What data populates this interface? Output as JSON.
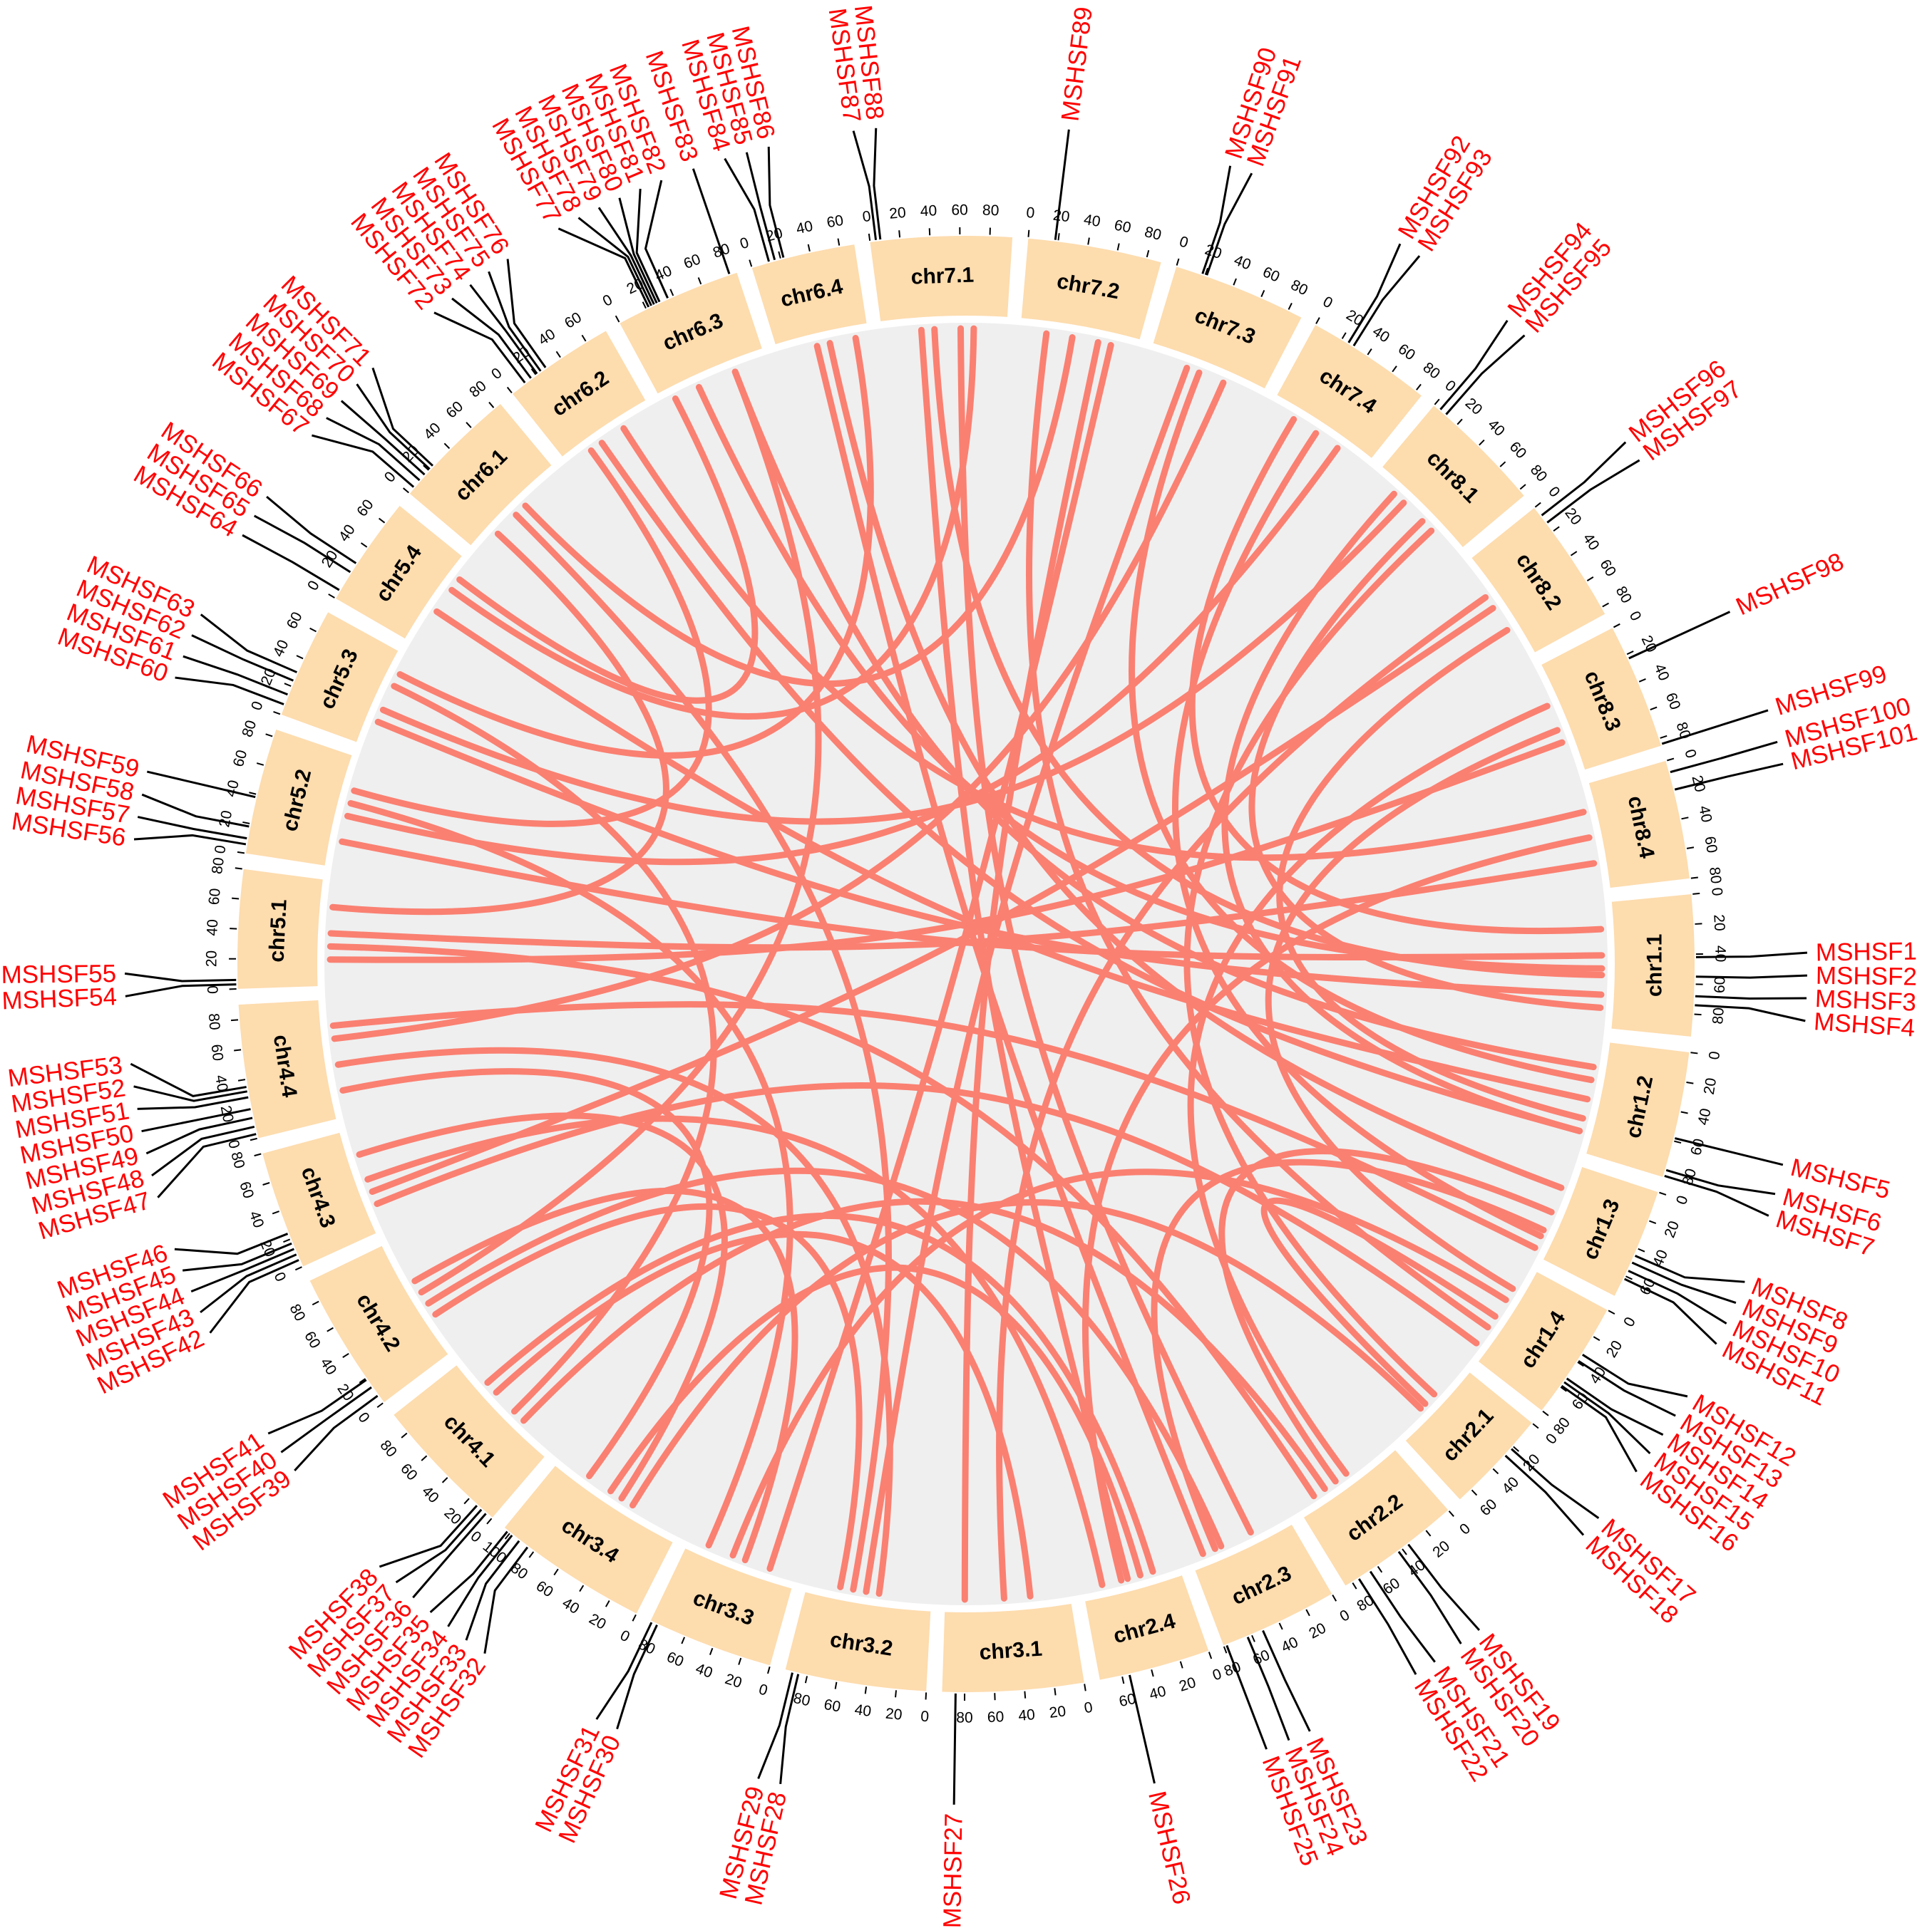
{
  "colors": {
    "chromosome_fill": "#fddcae",
    "link": "#fa8072",
    "gene_label": "#ff0000",
    "background_disc": "#efefef"
  },
  "chromosomes": [
    {
      "name": "chr1.1",
      "length": 95
    },
    {
      "name": "chr1.2",
      "length": 85
    },
    {
      "name": "chr1.3",
      "length": 75
    },
    {
      "name": "chr1.4",
      "length": 80
    },
    {
      "name": "chr2.1",
      "length": 70
    },
    {
      "name": "chr2.2",
      "length": 85
    },
    {
      "name": "chr2.3",
      "length": 80
    },
    {
      "name": "chr2.4",
      "length": 75
    },
    {
      "name": "chr3.1",
      "length": 95
    },
    {
      "name": "chr3.2",
      "length": 95
    },
    {
      "name": "chr3.3",
      "length": 85
    },
    {
      "name": "chr3.4",
      "length": 105
    },
    {
      "name": "chr4.1",
      "length": 95
    },
    {
      "name": "chr4.2",
      "length": 95
    },
    {
      "name": "chr4.3",
      "length": 80
    },
    {
      "name": "chr4.4",
      "length": 90
    },
    {
      "name": "chr5.1",
      "length": 80
    },
    {
      "name": "chr5.2",
      "length": 85
    },
    {
      "name": "chr5.3",
      "length": 75
    },
    {
      "name": "chr5.4",
      "length": 75
    },
    {
      "name": "chr6.1",
      "length": 85
    },
    {
      "name": "chr6.2",
      "length": 75
    },
    {
      "name": "chr6.3",
      "length": 85
    },
    {
      "name": "chr6.4",
      "length": 70
    },
    {
      "name": "chr7.1",
      "length": 95
    },
    {
      "name": "chr7.2",
      "length": 90
    },
    {
      "name": "chr7.3",
      "length": 90
    },
    {
      "name": "chr7.4",
      "length": 85
    },
    {
      "name": "chr8.1",
      "length": 85
    },
    {
      "name": "chr8.2",
      "length": 85
    },
    {
      "name": "chr8.3",
      "length": 85
    },
    {
      "name": "chr8.4",
      "length": 80
    }
  ],
  "genes": [
    {
      "name": "MSHSF1",
      "chr": "chr1.1",
      "pos": 42
    },
    {
      "name": "MSHSF2",
      "chr": "chr1.1",
      "pos": 55
    },
    {
      "name": "MSHSF3",
      "chr": "chr1.1",
      "pos": 68
    },
    {
      "name": "MSHSF4",
      "chr": "chr1.1",
      "pos": 74
    },
    {
      "name": "MSHSF5",
      "chr": "chr1.2",
      "pos": 58
    },
    {
      "name": "MSHSF6",
      "chr": "chr1.2",
      "pos": 80
    },
    {
      "name": "MSHSF7",
      "chr": "chr1.2",
      "pos": 84
    },
    {
      "name": "MSHSF8",
      "chr": "chr1.3",
      "pos": 45
    },
    {
      "name": "MSHSF9",
      "chr": "chr1.3",
      "pos": 50
    },
    {
      "name": "MSHSF10",
      "chr": "chr1.3",
      "pos": 56
    },
    {
      "name": "MSHSF11",
      "chr": "chr1.3",
      "pos": 62
    },
    {
      "name": "MSHSF12",
      "chr": "chr1.4",
      "pos": 34
    },
    {
      "name": "MSHSF13",
      "chr": "chr1.4",
      "pos": 39
    },
    {
      "name": "MSHSF14",
      "chr": "chr1.4",
      "pos": 53
    },
    {
      "name": "MSHSF15",
      "chr": "chr1.4",
      "pos": 56
    },
    {
      "name": "MSHSF16",
      "chr": "chr1.4",
      "pos": 59
    },
    {
      "name": "MSHSF17",
      "chr": "chr2.1",
      "pos": 22
    },
    {
      "name": "MSHSF18",
      "chr": "chr2.1",
      "pos": 28
    },
    {
      "name": "MSHSF19",
      "chr": "chr2.2",
      "pos": 35
    },
    {
      "name": "MSHSF20",
      "chr": "chr2.2",
      "pos": 43
    },
    {
      "name": "MSHSF21",
      "chr": "chr2.2",
      "pos": 66
    },
    {
      "name": "MSHSF22",
      "chr": "chr2.2",
      "pos": 75
    },
    {
      "name": "MSHSF23",
      "chr": "chr2.3",
      "pos": 52
    },
    {
      "name": "MSHSF24",
      "chr": "chr2.3",
      "pos": 63
    },
    {
      "name": "MSHSF25",
      "chr": "chr2.3",
      "pos": 78
    },
    {
      "name": "MSHSF26",
      "chr": "chr2.4",
      "pos": 55
    },
    {
      "name": "MSHSF27",
      "chr": "chr3.1",
      "pos": 86
    },
    {
      "name": "MSHSF28",
      "chr": "chr3.2",
      "pos": 86
    },
    {
      "name": "MSHSF29",
      "chr": "chr3.2",
      "pos": 90
    },
    {
      "name": "MSHSF30",
      "chr": "chr3.3",
      "pos": 80
    },
    {
      "name": "MSHSF31",
      "chr": "chr3.3",
      "pos": 84
    },
    {
      "name": "MSHSF32",
      "chr": "chr3.4",
      "pos": 85
    },
    {
      "name": "MSHSF33",
      "chr": "chr3.4",
      "pos": 92
    },
    {
      "name": "MSHSF34",
      "chr": "chr3.4",
      "pos": 98
    },
    {
      "name": "MSHSF35",
      "chr": "chr3.4",
      "pos": 102
    },
    {
      "name": "MSHSF36",
      "chr": "chr4.1",
      "pos": 5
    },
    {
      "name": "MSHSF37",
      "chr": "chr4.1",
      "pos": 9
    },
    {
      "name": "MSHSF38",
      "chr": "chr4.1",
      "pos": 13
    },
    {
      "name": "MSHSF39",
      "chr": "chr4.2",
      "pos": 6
    },
    {
      "name": "MSHSF40",
      "chr": "chr4.2",
      "pos": 13
    },
    {
      "name": "MSHSF41",
      "chr": "chr4.2",
      "pos": 19
    },
    {
      "name": "MSHSF42",
      "chr": "chr4.3",
      "pos": 5
    },
    {
      "name": "MSHSF43",
      "chr": "chr4.3",
      "pos": 9
    },
    {
      "name": "MSHSF44",
      "chr": "chr4.3",
      "pos": 13
    },
    {
      "name": "MSHSF45",
      "chr": "chr4.3",
      "pos": 17
    },
    {
      "name": "MSHSF46",
      "chr": "chr4.3",
      "pos": 24
    },
    {
      "name": "MSHSF47",
      "chr": "chr4.4",
      "pos": 3
    },
    {
      "name": "MSHSF48",
      "chr": "chr4.4",
      "pos": 8
    },
    {
      "name": "MSHSF49",
      "chr": "chr4.4",
      "pos": 14
    },
    {
      "name": "MSHSF50",
      "chr": "chr4.4",
      "pos": 20
    },
    {
      "name": "MSHSF51",
      "chr": "chr4.4",
      "pos": 28
    },
    {
      "name": "MSHSF52",
      "chr": "chr4.4",
      "pos": 32
    },
    {
      "name": "MSHSF53",
      "chr": "chr4.4",
      "pos": 35
    },
    {
      "name": "MSHSF54",
      "chr": "chr5.1",
      "pos": 3
    },
    {
      "name": "MSHSF55",
      "chr": "chr5.1",
      "pos": 6
    },
    {
      "name": "MSHSF56",
      "chr": "chr5.2",
      "pos": 6
    },
    {
      "name": "MSHSF57",
      "chr": "chr5.2",
      "pos": 10
    },
    {
      "name": "MSHSF58",
      "chr": "chr5.2",
      "pos": 18
    },
    {
      "name": "MSHSF59",
      "chr": "chr5.2",
      "pos": 38
    },
    {
      "name": "MSHSF60",
      "chr": "chr5.3",
      "pos": 7
    },
    {
      "name": "MSHSF61",
      "chr": "chr5.3",
      "pos": 14
    },
    {
      "name": "MSHSF62",
      "chr": "chr5.3",
      "pos": 24
    },
    {
      "name": "MSHSF63",
      "chr": "chr5.3",
      "pos": 30
    },
    {
      "name": "MSHSF64",
      "chr": "chr5.4",
      "pos": 6
    },
    {
      "name": "MSHSF65",
      "chr": "chr5.4",
      "pos": 20
    },
    {
      "name": "MSHSF66",
      "chr": "chr5.4",
      "pos": 27
    },
    {
      "name": "MSHSF67",
      "chr": "chr6.1",
      "pos": 5
    },
    {
      "name": "MSHSF68",
      "chr": "chr6.1",
      "pos": 11
    },
    {
      "name": "MSHSF69",
      "chr": "chr6.1",
      "pos": 16
    },
    {
      "name": "MSHSF70",
      "chr": "chr6.1",
      "pos": 21
    },
    {
      "name": "MSHSF71",
      "chr": "chr6.1",
      "pos": 24
    },
    {
      "name": "MSHSF72",
      "chr": "chr6.2",
      "pos": 11
    },
    {
      "name": "MSHSF73",
      "chr": "chr6.2",
      "pos": 16
    },
    {
      "name": "MSHSF74",
      "chr": "chr6.2",
      "pos": 21
    },
    {
      "name": "MSHSF75",
      "chr": "chr6.2",
      "pos": 24
    },
    {
      "name": "MSHSF76",
      "chr": "chr6.2",
      "pos": 28
    },
    {
      "name": "MSHSF77",
      "chr": "chr6.3",
      "pos": 22
    },
    {
      "name": "MSHSF78",
      "chr": "chr6.3",
      "pos": 24
    },
    {
      "name": "MSHSF79",
      "chr": "chr6.3",
      "pos": 26
    },
    {
      "name": "MSHSF80",
      "chr": "chr6.3",
      "pos": 28
    },
    {
      "name": "MSHSF81",
      "chr": "chr6.3",
      "pos": 30
    },
    {
      "name": "MSHSF82",
      "chr": "chr6.3",
      "pos": 36
    },
    {
      "name": "MSHSF83",
      "chr": "chr6.3",
      "pos": 80
    },
    {
      "name": "MSHSF84",
      "chr": "chr6.4",
      "pos": 12
    },
    {
      "name": "MSHSF85",
      "chr": "chr6.4",
      "pos": 16
    },
    {
      "name": "MSHSF86",
      "chr": "chr6.4",
      "pos": 22
    },
    {
      "name": "MSHSF87",
      "chr": "chr7.1",
      "pos": 4
    },
    {
      "name": "MSHSF88",
      "chr": "chr7.1",
      "pos": 7
    },
    {
      "name": "MSHSF89",
      "chr": "chr7.2",
      "pos": 18
    },
    {
      "name": "MSHSF90",
      "chr": "chr7.3",
      "pos": 18
    },
    {
      "name": "MSHSF91",
      "chr": "chr7.3",
      "pos": 21
    },
    {
      "name": "MSHSF92",
      "chr": "chr7.4",
      "pos": 25
    },
    {
      "name": "MSHSF93",
      "chr": "chr7.4",
      "pos": 29
    },
    {
      "name": "MSHSF94",
      "chr": "chr8.1",
      "pos": 5
    },
    {
      "name": "MSHSF95",
      "chr": "chr8.1",
      "pos": 10
    },
    {
      "name": "MSHSF96",
      "chr": "chr8.2",
      "pos": 7
    },
    {
      "name": "MSHSF97",
      "chr": "chr8.2",
      "pos": 13
    },
    {
      "name": "MSHSF98",
      "chr": "chr8.3",
      "pos": 23
    },
    {
      "name": "MSHSF99",
      "chr": "chr8.3",
      "pos": 84
    },
    {
      "name": "MSHSF100",
      "chr": "chr8.4",
      "pos": 8
    },
    {
      "name": "MSHSF101",
      "chr": "chr8.4",
      "pos": 20
    }
  ],
  "links": [
    [
      "chr1.1",
      50,
      "chr6.3",
      30
    ],
    [
      "chr1.1",
      55,
      "chr7.1",
      40
    ],
    [
      "chr1.1",
      70,
      "chr5.3",
      20
    ],
    [
      "chr1.1",
      80,
      "chr8.1",
      50
    ],
    [
      "chr1.1",
      40,
      "chr5.2",
      20
    ],
    [
      "chr1.2",
      30,
      "chr7.3",
      40
    ],
    [
      "chr1.2",
      60,
      "chr8.2",
      60
    ],
    [
      "chr1.2",
      45,
      "chr5.4",
      30
    ],
    [
      "chr1.2",
      70,
      "chr6.2",
      30
    ],
    [
      "chr1.3",
      40,
      "chr2.2",
      50
    ],
    [
      "chr1.3",
      55,
      "chr2.3",
      60
    ],
    [
      "chr1.3",
      60,
      "chr7.4",
      40
    ],
    [
      "chr1.4",
      30,
      "chr3.3",
      50
    ],
    [
      "chr1.4",
      45,
      "chr2.1",
      40
    ],
    [
      "chr1.4",
      55,
      "chr7.2",
      20
    ],
    [
      "chr2.1",
      30,
      "chr8.1",
      60
    ],
    [
      "chr2.1",
      45,
      "chr3.4",
      40
    ],
    [
      "chr2.2",
      40,
      "chr8.3",
      30
    ],
    [
      "chr2.2",
      60,
      "chr4.1",
      30
    ],
    [
      "chr2.2",
      70,
      "chr5.1",
      30
    ],
    [
      "chr2.3",
      30,
      "chr7.1",
      60
    ],
    [
      "chr2.3",
      55,
      "chr4.2",
      40
    ],
    [
      "chr2.3",
      70,
      "chr6.4",
      30
    ],
    [
      "chr2.4",
      30,
      "chr3.4",
      60
    ],
    [
      "chr2.4",
      45,
      "chr8.4",
      40
    ],
    [
      "chr2.4",
      60,
      "chr4.3",
      40
    ],
    [
      "chr3.1",
      30,
      "chr4.1",
      60
    ],
    [
      "chr3.1",
      80,
      "chr7.2",
      60
    ],
    [
      "chr3.2",
      40,
      "chr4.4",
      40
    ],
    [
      "chr3.2",
      60,
      "chr6.1",
      40
    ],
    [
      "chr3.3",
      40,
      "chr4.2",
      60
    ],
    [
      "chr3.3",
      70,
      "chr5.2",
      50
    ],
    [
      "chr3.4",
      50,
      "chr4.3",
      60
    ],
    [
      "chr3.4",
      80,
      "chr4.4",
      20
    ],
    [
      "chr4.1",
      40,
      "chr5.3",
      50
    ],
    [
      "chr4.2",
      50,
      "chr6.3",
      60
    ],
    [
      "chr4.3",
      30,
      "chr8.2",
      40
    ],
    [
      "chr4.4",
      60,
      "chr7.3",
      60
    ],
    [
      "chr5.1",
      40,
      "chr8.4",
      60
    ],
    [
      "chr5.1",
      20,
      "chr8.3",
      60
    ],
    [
      "chr5.2",
      40,
      "chr7.4",
      60
    ],
    [
      "chr5.3",
      30,
      "chr8.1",
      30
    ],
    [
      "chr5.4",
      50,
      "chr7.1",
      70
    ],
    [
      "chr6.1",
      50,
      "chr7.2",
      40
    ],
    [
      "chr6.2",
      50,
      "chr8.4",
      20
    ],
    [
      "chr6.3",
      60,
      "chr1.2",
      20
    ],
    [
      "chr6.4",
      40,
      "chr1.3",
      20
    ],
    [
      "chr7.1",
      30,
      "chr2.4",
      40
    ],
    [
      "chr7.3",
      30,
      "chr3.2",
      50
    ],
    [
      "chr8.2",
      30,
      "chr3.1",
      50
    ],
    [
      "chr6.1",
      20,
      "chr5.1",
      60
    ],
    [
      "chr6.2",
      20,
      "chr5.2",
      60
    ],
    [
      "chr6.3",
      10,
      "chr5.4",
      60
    ],
    [
      "chr7.4",
      20,
      "chr1.1",
      20
    ],
    [
      "chr8.3",
      50,
      "chr1.4",
      20
    ],
    [
      "chr8.1",
      20,
      "chr1.2",
      70
    ],
    [
      "chr4.1",
      70,
      "chr2.4",
      20
    ],
    [
      "chr4.2",
      30,
      "chr3.2",
      70
    ],
    [
      "chr4.3",
      20,
      "chr1.4",
      70
    ],
    [
      "chr4.4",
      70,
      "chr1.3",
      70
    ],
    [
      "chr5.3",
      60,
      "chr6.4",
      60
    ],
    [
      "chr7.2",
      70,
      "chr3.3",
      20
    ]
  ]
}
